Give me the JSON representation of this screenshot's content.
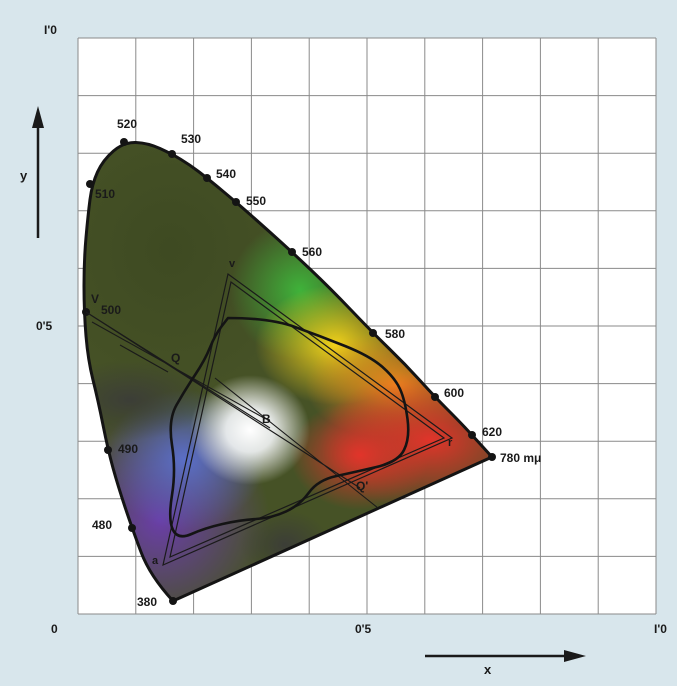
{
  "axes": {
    "x_label": "x",
    "y_label": "y",
    "origin_label": "0",
    "x_mid_label": "0'5",
    "x_max_label": "I'0",
    "y_mid_label": "0'5",
    "y_max_label": "I'0"
  },
  "wavelength_labels": {
    "w380": "380",
    "w480": "480",
    "w490": "490",
    "w500": "500",
    "w510": "510",
    "w520": "520",
    "w530": "530",
    "w540": "540",
    "w550": "550",
    "w560": "560",
    "w580": "580",
    "w600": "600",
    "w620": "620",
    "w780": "780 mμ"
  },
  "point_labels": {
    "V_locus": "V",
    "v_triangle": "v",
    "r_triangle": "r",
    "a_triangle": "a",
    "Q": "Q",
    "B": "B",
    "Q_prime": "Q'"
  },
  "colors": {
    "background": "#d8e6ec",
    "grid_panel": "#ffffff",
    "grid_line": "#8a8a8a",
    "outline": "#141414"
  }
}
